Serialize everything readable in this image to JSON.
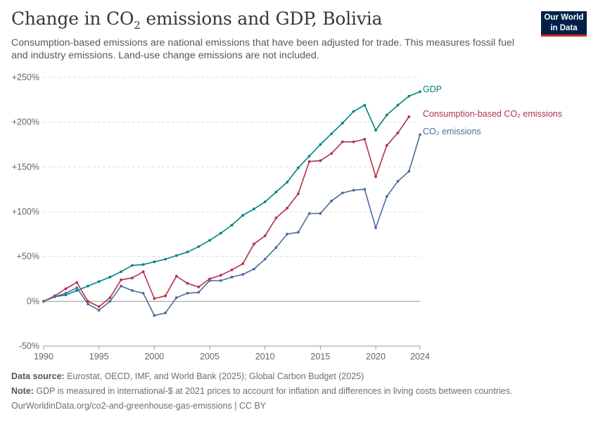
{
  "header": {
    "title_prefix": "Change in CO",
    "title_sub": "2",
    "title_suffix": " emissions and GDP, Bolivia",
    "subtitle": "Consumption-based emissions are national emissions that have been adjusted for trade. This measures fossil fuel and industry emissions. Land-use change emissions are not included.",
    "logo_line1": "Our World",
    "logo_line2": "in Data"
  },
  "footer": {
    "source_label": "Data source:",
    "source_text": " Eurostat, OECD, IMF, and World Bank (2025); Global Carbon Budget (2025)",
    "note_label": "Note:",
    "note_text": " GDP is measured in international-$ at 2021 prices to account for inflation and differences in living costs between countries.",
    "url": "OurWorldinData.org/co2-and-greenhouse-gas-emissions | CC BY"
  },
  "colors": {
    "gdp": "#00847e",
    "consumption": "#b13148",
    "co2": "#4c6a9c",
    "grid": "#dddddd",
    "axis_text": "#666666"
  },
  "chart_data": {
    "type": "line",
    "xlim": [
      1990,
      2024
    ],
    "ylim": [
      -50,
      250
    ],
    "x_ticks": [
      1990,
      1995,
      2000,
      2005,
      2010,
      2015,
      2020,
      2024
    ],
    "y_ticks": [
      -50,
      0,
      50,
      100,
      150,
      200,
      250
    ],
    "y_tick_labels": [
      "-50%",
      "0%",
      "+50%",
      "+100%",
      "+150%",
      "+200%",
      "+250%"
    ],
    "grid": "horizontal dashed",
    "series": [
      {
        "name": "GDP",
        "color": "#00847e",
        "x": [
          1990,
          1991,
          1992,
          1993,
          1994,
          1995,
          1996,
          1997,
          1998,
          1999,
          2000,
          2001,
          2002,
          2003,
          2004,
          2005,
          2006,
          2007,
          2008,
          2009,
          2010,
          2011,
          2012,
          2013,
          2014,
          2015,
          2016,
          2017,
          2018,
          2019,
          2020,
          2021,
          2022,
          2023,
          2024
        ],
        "values": [
          0,
          5,
          7,
          12,
          17,
          22,
          27,
          33,
          40,
          41,
          44,
          47,
          51,
          55,
          61,
          68,
          76,
          85,
          96,
          103,
          111,
          122,
          133,
          149,
          162,
          175,
          187,
          199,
          212,
          219,
          191,
          208,
          219,
          229,
          234
        ]
      },
      {
        "name": "Consumption-based CO₂ emissions",
        "color": "#b13148",
        "x": [
          1990,
          1991,
          1992,
          1993,
          1994,
          1995,
          1996,
          1997,
          1998,
          1999,
          2000,
          2001,
          2002,
          2003,
          2004,
          2005,
          2006,
          2007,
          2008,
          2009,
          2010,
          2011,
          2012,
          2013,
          2014,
          2015,
          2016,
          2017,
          2018,
          2019,
          2020,
          2021,
          2022,
          2023
        ],
        "values": [
          0,
          6,
          14,
          21,
          0,
          -6,
          4,
          24,
          26,
          33,
          3,
          6,
          28,
          20,
          16,
          25,
          29,
          35,
          42,
          64,
          73,
          93,
          104,
          120,
          156,
          157,
          165,
          178,
          178,
          181,
          139,
          174,
          188,
          206
        ]
      },
      {
        "name": "CO₂ emissions",
        "color": "#4c6a9c",
        "x": [
          1990,
          1991,
          1992,
          1993,
          1994,
          1995,
          1996,
          1997,
          1998,
          1999,
          2000,
          2001,
          2002,
          2003,
          2004,
          2005,
          2006,
          2007,
          2008,
          2009,
          2010,
          2011,
          2012,
          2013,
          2014,
          2015,
          2016,
          2017,
          2018,
          2019,
          2020,
          2021,
          2022,
          2023,
          2024
        ],
        "values": [
          0,
          5,
          9,
          15,
          -3,
          -10,
          0,
          17,
          12,
          9,
          -16,
          -13,
          4,
          9,
          10,
          23,
          23,
          27,
          30,
          36,
          47,
          60,
          75,
          77,
          98,
          98,
          112,
          121,
          124,
          125,
          82,
          117,
          134,
          145,
          186
        ]
      }
    ]
  }
}
